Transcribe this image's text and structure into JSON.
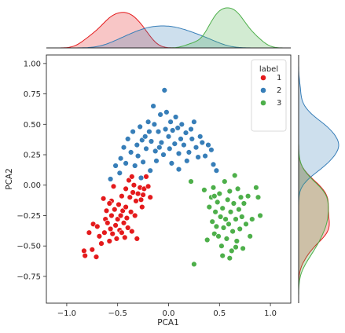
{
  "chart_data": {
    "type": "scatter",
    "title": "",
    "xlabel": "PCA1",
    "ylabel": "PCA2",
    "xlim": [
      -1.2,
      1.2
    ],
    "ylim": [
      -0.97,
      1.07
    ],
    "xticks": [
      -1.0,
      -0.5,
      0.0,
      0.5,
      1.0
    ],
    "xtick_labels": [
      "−1.0",
      "−0.5",
      "0.0",
      "0.5",
      "1.0"
    ],
    "yticks": [
      -0.75,
      -0.5,
      -0.25,
      0.0,
      0.25,
      0.5,
      0.75,
      1.0
    ],
    "ytick_labels": [
      "−0.75",
      "−0.50",
      "−0.25",
      "0.00",
      "0.25",
      "0.50",
      "0.75",
      "1.00"
    ],
    "grid": false,
    "legend": {
      "title": "label",
      "position": "top-right"
    },
    "marginals": {
      "top": "kde of PCA1 by label",
      "right": "kde of PCA2 by label"
    },
    "series": [
      {
        "name": "1",
        "color": "#e41a1c",
        "points": [
          [
            -0.83,
            -0.54
          ],
          [
            -0.82,
            -0.58
          ],
          [
            -0.75,
            -0.53
          ],
          [
            -0.71,
            -0.59
          ],
          [
            -0.78,
            -0.39
          ],
          [
            -0.74,
            -0.32
          ],
          [
            -0.7,
            -0.34
          ],
          [
            -0.68,
            -0.42
          ],
          [
            -0.66,
            -0.48
          ],
          [
            -0.63,
            -0.39
          ],
          [
            -0.62,
            -0.28
          ],
          [
            -0.61,
            -0.21
          ],
          [
            -0.6,
            -0.31
          ],
          [
            -0.58,
            -0.46
          ],
          [
            -0.57,
            -0.36
          ],
          [
            -0.56,
            -0.25
          ],
          [
            -0.56,
            -0.13
          ],
          [
            -0.55,
            -0.4
          ],
          [
            -0.54,
            -0.01
          ],
          [
            -0.53,
            -0.2
          ],
          [
            -0.52,
            -0.33
          ],
          [
            -0.51,
            -0.44
          ],
          [
            -0.5,
            -0.28
          ],
          [
            -0.49,
            -0.16
          ],
          [
            -0.48,
            -0.37
          ],
          [
            -0.47,
            -0.25
          ],
          [
            -0.46,
            -0.39
          ],
          [
            -0.46,
            -0.09
          ],
          [
            -0.45,
            -0.21
          ],
          [
            -0.44,
            -0.31
          ],
          [
            -0.43,
            -0.43
          ],
          [
            -0.42,
            -0.18
          ],
          [
            -0.42,
            -0.03
          ],
          [
            -0.41,
            -0.27
          ],
          [
            -0.4,
            -0.35
          ],
          [
            -0.39,
            0.04
          ],
          [
            -0.38,
            -0.1
          ],
          [
            -0.37,
            -0.22
          ],
          [
            -0.36,
            -0.38
          ],
          [
            -0.35,
            -0.06
          ],
          [
            -0.34,
            0.0
          ],
          [
            -0.33,
            -0.25
          ],
          [
            -0.32,
            -0.13
          ],
          [
            -0.31,
            -0.44
          ],
          [
            -0.3,
            -0.07
          ],
          [
            -0.28,
            -0.02
          ],
          [
            -0.27,
            -0.12
          ],
          [
            -0.26,
            -0.18
          ],
          [
            -0.25,
            -0.08
          ],
          [
            -0.24,
            -0.03
          ],
          [
            -0.22,
            0.07
          ],
          [
            -0.2,
            -0.01
          ],
          [
            -0.18,
            -0.1
          ],
          [
            -0.58,
            -0.15
          ],
          [
            -0.64,
            -0.11
          ],
          [
            -0.36,
            0.07
          ]
        ]
      },
      {
        "name": "2",
        "color": "#377eb8",
        "points": [
          [
            -0.57,
            0.05
          ],
          [
            -0.52,
            0.16
          ],
          [
            -0.48,
            0.1
          ],
          [
            -0.47,
            0.22
          ],
          [
            -0.44,
            0.31
          ],
          [
            -0.42,
            0.18
          ],
          [
            -0.4,
            0.38
          ],
          [
            -0.37,
            0.27
          ],
          [
            -0.35,
            0.44
          ],
          [
            -0.33,
            0.16
          ],
          [
            -0.31,
            0.33
          ],
          [
            -0.3,
            0.24
          ],
          [
            -0.28,
            0.48
          ],
          [
            -0.26,
            0.37
          ],
          [
            -0.25,
            0.19
          ],
          [
            -0.23,
            0.4
          ],
          [
            -0.22,
            0.3
          ],
          [
            -0.2,
            0.52
          ],
          [
            -0.19,
            0.44
          ],
          [
            -0.18,
            0.12
          ],
          [
            -0.17,
            0.36
          ],
          [
            -0.15,
            0.65
          ],
          [
            -0.14,
            0.5
          ],
          [
            -0.13,
            0.28
          ],
          [
            -0.12,
            0.2
          ],
          [
            -0.1,
            0.44
          ],
          [
            -0.08,
            0.58
          ],
          [
            -0.07,
            0.35
          ],
          [
            -0.05,
            0.25
          ],
          [
            -0.04,
            0.78
          ],
          [
            -0.03,
            0.46
          ],
          [
            -0.02,
            0.6
          ],
          [
            0.0,
            0.4
          ],
          [
            0.01,
            0.3
          ],
          [
            0.02,
            0.52
          ],
          [
            0.03,
            0.18
          ],
          [
            0.04,
            0.45
          ],
          [
            0.06,
            0.34
          ],
          [
            0.07,
            0.56
          ],
          [
            0.09,
            0.47
          ],
          [
            0.1,
            0.26
          ],
          [
            0.12,
            0.38
          ],
          [
            0.13,
            0.5
          ],
          [
            0.15,
            0.33
          ],
          [
            0.17,
            0.43
          ],
          [
            0.18,
            0.2
          ],
          [
            0.2,
            0.27
          ],
          [
            0.22,
            0.46
          ],
          [
            0.23,
            0.38
          ],
          [
            0.25,
            0.52
          ],
          [
            0.27,
            0.31
          ],
          [
            0.29,
            0.23
          ],
          [
            0.31,
            0.4
          ],
          [
            0.33,
            0.35
          ],
          [
            0.36,
            0.24
          ],
          [
            0.39,
            0.33
          ],
          [
            0.42,
            0.29
          ],
          [
            0.44,
            0.17
          ],
          [
            0.47,
            0.12
          ],
          [
            0.1,
            0.13
          ],
          [
            -0.09,
            0.31
          ],
          [
            -0.27,
            0.06
          ]
        ]
      },
      {
        "name": "3",
        "color": "#4daf4a",
        "points": [
          [
            0.22,
            0.03
          ],
          [
            0.25,
            -0.65
          ],
          [
            0.35,
            -0.04
          ],
          [
            0.38,
            -0.45
          ],
          [
            0.4,
            -0.18
          ],
          [
            0.42,
            -0.1
          ],
          [
            0.43,
            -0.3
          ],
          [
            0.44,
            -0.02
          ],
          [
            0.45,
            -0.4
          ],
          [
            0.46,
            -0.22
          ],
          [
            0.47,
            -0.34
          ],
          [
            0.48,
            -0.14
          ],
          [
            0.49,
            -0.42
          ],
          [
            0.5,
            -0.07
          ],
          [
            0.51,
            -0.26
          ],
          [
            0.52,
            -0.5
          ],
          [
            0.53,
            -0.19
          ],
          [
            0.54,
            -0.35
          ],
          [
            0.55,
            0.03
          ],
          [
            0.56,
            -0.28
          ],
          [
            0.57,
            -0.44
          ],
          [
            0.58,
            -0.12
          ],
          [
            0.59,
            -0.32
          ],
          [
            0.6,
            -0.05
          ],
          [
            0.61,
            -0.22
          ],
          [
            0.62,
            -0.54
          ],
          [
            0.63,
            -0.38
          ],
          [
            0.64,
            -0.15
          ],
          [
            0.65,
            0.08
          ],
          [
            0.66,
            -0.28
          ],
          [
            0.67,
            -0.46
          ],
          [
            0.68,
            -0.03
          ],
          [
            0.69,
            -0.2
          ],
          [
            0.7,
            -0.36
          ],
          [
            0.71,
            -0.1
          ],
          [
            0.72,
            -0.26
          ],
          [
            0.73,
            -0.52
          ],
          [
            0.74,
            -0.15
          ],
          [
            0.76,
            -0.32
          ],
          [
            0.78,
            -0.09
          ],
          [
            0.8,
            -0.42
          ],
          [
            0.82,
            -0.28
          ],
          [
            0.86,
            -0.02
          ],
          [
            0.88,
            -0.1
          ],
          [
            0.9,
            -0.25
          ],
          [
            0.53,
            -0.58
          ],
          [
            0.6,
            -0.6
          ],
          [
            0.45,
            -0.09
          ],
          [
            0.66,
            -0.51
          ]
        ]
      }
    ]
  }
}
